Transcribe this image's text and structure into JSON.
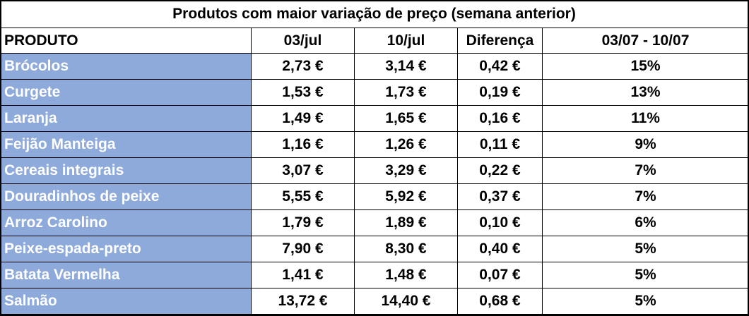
{
  "table": {
    "title": "Produtos com maior variação de preço (semana anterior)",
    "header": [
      "PRODUTO",
      "03/jul",
      "10/jul",
      "Diferença",
      "03/07 - 10/07"
    ],
    "rows": [
      [
        "Brócolos",
        "2,73 €",
        "3,14 €",
        "0,42 €",
        "15%"
      ],
      [
        "Curgete",
        "1,53 €",
        "1,73 €",
        "0,19 €",
        "13%"
      ],
      [
        "Laranja",
        "1,49 €",
        "1,65 €",
        "0,16 €",
        "11%"
      ],
      [
        "Feijão Manteiga",
        "1,16 €",
        "1,26 €",
        "0,11 €",
        "9%"
      ],
      [
        "Cereais integrais",
        "3,07 €",
        "3,29 €",
        "0,22 €",
        "7%"
      ],
      [
        "Douradinhos de peixe",
        "5,55 €",
        "5,92 €",
        "0,37 €",
        "7%"
      ],
      [
        "Arroz Carolino",
        "1,79 €",
        "1,89 €",
        "0,10 €",
        "6%"
      ],
      [
        "Peixe-espada-preto",
        "7,90 €",
        "8,30 €",
        "0,40 €",
        "5%"
      ],
      [
        "Batata Vermelha",
        "1,41 €",
        "1,48 €",
        "0,07 €",
        "5%"
      ],
      [
        "Salmão",
        "13,72 €",
        "14,40 €",
        "0,68 €",
        "5%"
      ]
    ]
  }
}
